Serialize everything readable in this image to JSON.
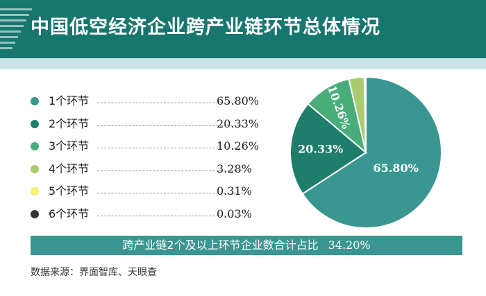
{
  "title": "中国低空经济企业跨产业链环节总体情况",
  "chart_data": {
    "type": "pie",
    "categories": [
      "1个环节",
      "2个环节",
      "3个环节",
      "4个环节",
      "5个环节",
      "6个环节"
    ],
    "values": [
      65.8,
      20.33,
      10.26,
      3.28,
      0.31,
      0.03
    ],
    "value_labels": [
      "65.80%",
      "20.33%",
      "10.26%",
      "3.28%",
      "0.31%",
      "0.03%"
    ],
    "colors": [
      "#3a9690",
      "#1f7d6b",
      "#49ad7a",
      "#a9cc6e",
      "#f7ef77",
      "#333333"
    ],
    "legend_position": "left"
  },
  "summary": {
    "label": "跨产业链2个及以上环节企业数合计占比",
    "value": "34.20%"
  },
  "source": "数据来源：界面智库、天眼查"
}
